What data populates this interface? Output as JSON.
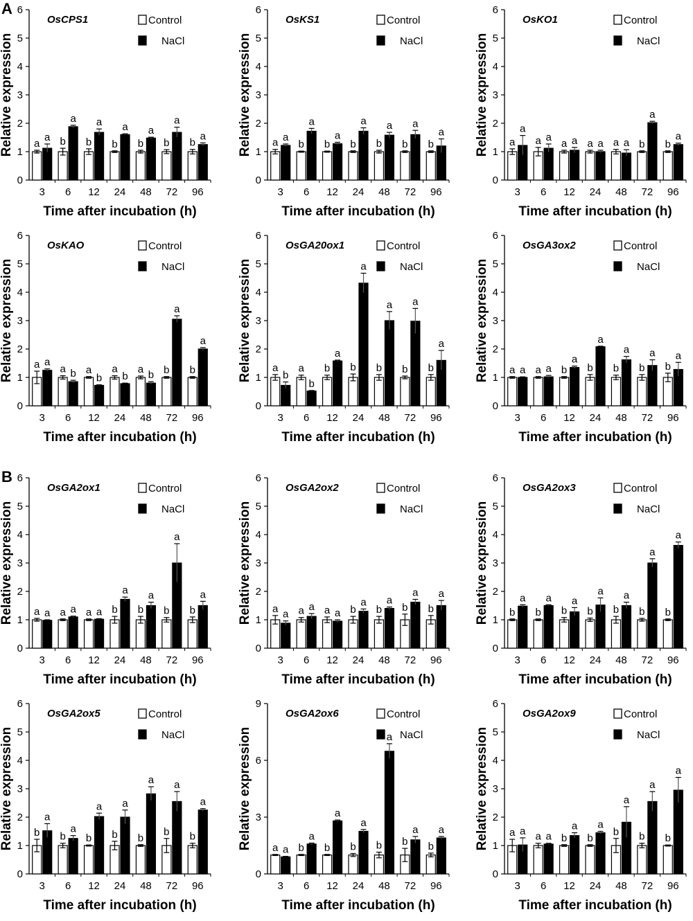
{
  "figure": {
    "panel_labels": [
      "A",
      "B"
    ],
    "xlabel": "Time after incubation (h)",
    "ylabel": "Relative expression",
    "legend": {
      "control": "Control",
      "nacl": "NaCl"
    },
    "colors": {
      "control": "#ffffff",
      "nacl": "#000000",
      "edge": "#000000"
    }
  },
  "chart_data": [
    {
      "type": "bar",
      "title": "OsCPS1",
      "categories": [
        "3",
        "6",
        "12",
        "24",
        "48",
        "72",
        "96"
      ],
      "xlabel": "Time after incubation (h)",
      "ylabel": "Relative expression",
      "ylim": [
        0,
        6
      ],
      "yticks": [
        "0",
        "1",
        "2",
        "3",
        "4",
        "5",
        "6"
      ],
      "series": [
        {
          "name": "Control",
          "values": [
            1,
            1,
            1,
            1,
            1,
            1,
            1
          ],
          "errors": [
            0.05,
            0.12,
            0.1,
            0.03,
            0.05,
            0.07,
            0.08
          ],
          "letters": [
            "a",
            "b",
            "b",
            "b",
            "b",
            "b",
            "b"
          ]
        },
        {
          "name": "NaCl",
          "values": [
            1.12,
            1.88,
            1.68,
            1.6,
            1.48,
            1.68,
            1.25
          ],
          "errors": [
            0.15,
            0.05,
            0.12,
            0.03,
            0.03,
            0.18,
            0.06
          ],
          "letters": [
            "a",
            "a",
            "a",
            "a",
            "a",
            "a",
            "a"
          ]
        }
      ]
    },
    {
      "type": "bar",
      "title": "OsKS1",
      "categories": [
        "3",
        "6",
        "12",
        "24",
        "48",
        "72",
        "96"
      ],
      "xlabel": "Time after incubation (h)",
      "ylabel": "Relative expression",
      "ylim": [
        0,
        6
      ],
      "yticks": [
        "0",
        "1",
        "2",
        "3",
        "4",
        "5",
        "6"
      ],
      "series": [
        {
          "name": "Control",
          "values": [
            1,
            1,
            1,
            1,
            1,
            1,
            1
          ],
          "errors": [
            0.08,
            0.02,
            0.02,
            0.03,
            0.05,
            0.03,
            0.03
          ],
          "letters": [
            "a",
            "b",
            "b",
            "b",
            "b",
            "b",
            "b"
          ]
        },
        {
          "name": "NaCl",
          "values": [
            1.22,
            1.72,
            1.28,
            1.72,
            1.58,
            1.6,
            1.2
          ],
          "errors": [
            0.05,
            0.1,
            0.05,
            0.12,
            0.1,
            0.15,
            0.25
          ],
          "letters": [
            "a",
            "a",
            "a",
            "a",
            "a",
            "a",
            "a"
          ]
        }
      ]
    },
    {
      "type": "bar",
      "title": "OsKO1",
      "categories": [
        "3",
        "6",
        "12",
        "24",
        "48",
        "72",
        "96"
      ],
      "xlabel": "Time after incubation (h)",
      "ylabel": "Relative expression",
      "ylim": [
        0,
        6
      ],
      "yticks": [
        "0",
        "1",
        "2",
        "3",
        "4",
        "5",
        "6"
      ],
      "series": [
        {
          "name": "Control",
          "values": [
            1,
            1,
            1,
            1,
            1,
            1,
            1
          ],
          "errors": [
            0.1,
            0.15,
            0.05,
            0.05,
            0.08,
            0.03,
            0.03
          ],
          "letters": [
            "a",
            "a",
            "a",
            "a",
            "a",
            "b",
            "b"
          ]
        },
        {
          "name": "NaCl",
          "values": [
            1.22,
            1.12,
            1.05,
            1,
            0.95,
            2.02,
            1.25
          ],
          "errors": [
            0.35,
            0.15,
            0.1,
            0.05,
            0.12,
            0.05,
            0.05
          ],
          "letters": [
            "a",
            "a",
            "a",
            "a",
            "a",
            "a",
            "a"
          ]
        }
      ]
    },
    {
      "type": "bar",
      "title": "OsKAO",
      "categories": [
        "3",
        "6",
        "12",
        "24",
        "48",
        "72",
        "96"
      ],
      "xlabel": "Time after incubation (h)",
      "ylabel": "Relative expression",
      "ylim": [
        0,
        6
      ],
      "yticks": [
        "0",
        "1",
        "2",
        "3",
        "4",
        "5",
        "6"
      ],
      "series": [
        {
          "name": "Control",
          "values": [
            1,
            1,
            1,
            1,
            1,
            1,
            1
          ],
          "errors": [
            0.22,
            0.06,
            0.03,
            0.06,
            0.05,
            0.03,
            0.03
          ],
          "letters": [
            "a",
            "a",
            "a",
            "a",
            "a",
            "b",
            "b"
          ]
        },
        {
          "name": "NaCl",
          "values": [
            1.25,
            0.85,
            0.72,
            0.78,
            0.8,
            3.05,
            2.0
          ],
          "errors": [
            0.05,
            0.05,
            0.02,
            0.02,
            0.05,
            0.12,
            0.05
          ],
          "letters": [
            "a",
            "b",
            "b",
            "b",
            "b",
            "a",
            "a"
          ]
        }
      ]
    },
    {
      "type": "bar",
      "title": "OsGA20ox1",
      "categories": [
        "3",
        "6",
        "12",
        "24",
        "48",
        "72",
        "96"
      ],
      "xlabel": "Time after incubation (h)",
      "ylabel": "Relative expression",
      "ylim": [
        0,
        6
      ],
      "yticks": [
        "0",
        "1",
        "2",
        "3",
        "4",
        "5",
        "6"
      ],
      "series": [
        {
          "name": "Control",
          "values": [
            1,
            1,
            1,
            1,
            1,
            1,
            1
          ],
          "errors": [
            0.1,
            0.08,
            0.08,
            0.12,
            0.1,
            0.05,
            0.1
          ],
          "letters": [
            "a",
            "a",
            "b",
            "b",
            "b",
            "b",
            "b"
          ]
        },
        {
          "name": "NaCl",
          "values": [
            0.72,
            0.52,
            1.58,
            4.32,
            3.0,
            2.98,
            1.6
          ],
          "errors": [
            0.12,
            0.02,
            0.03,
            0.35,
            0.32,
            0.45,
            0.35
          ],
          "letters": [
            "b",
            "b",
            "a",
            "a",
            "a",
            "a",
            "a"
          ]
        }
      ]
    },
    {
      "type": "bar",
      "title": "OsGA3ox2",
      "categories": [
        "3",
        "6",
        "12",
        "24",
        "48",
        "72",
        "96"
      ],
      "xlabel": "Time after incubation (h)",
      "ylabel": "Relative expression",
      "ylim": [
        0,
        6
      ],
      "yticks": [
        "0",
        "1",
        "2",
        "3",
        "4",
        "5",
        "6"
      ],
      "series": [
        {
          "name": "Control",
          "values": [
            1,
            1,
            1,
            1,
            1,
            1,
            1
          ],
          "errors": [
            0.03,
            0.03,
            0.03,
            0.1,
            0.08,
            0.1,
            0.15
          ],
          "letters": [
            "a",
            "a",
            "b",
            "b",
            "b",
            "b",
            "b"
          ]
        },
        {
          "name": "NaCl",
          "values": [
            1.0,
            1.02,
            1.35,
            2.08,
            1.62,
            1.42,
            1.28
          ],
          "errors": [
            0.02,
            0.05,
            0.05,
            0.02,
            0.12,
            0.2,
            0.25
          ],
          "letters": [
            "a",
            "a",
            "a",
            "a",
            "a",
            "a",
            "a"
          ]
        }
      ]
    },
    {
      "type": "bar",
      "title": "OsGA2ox1",
      "categories": [
        "3",
        "6",
        "12",
        "24",
        "48",
        "72",
        "96"
      ],
      "xlabel": "Time after incubation (h)",
      "ylabel": "Relative expression",
      "ylim": [
        0,
        6
      ],
      "yticks": [
        "0",
        "1",
        "2",
        "3",
        "4",
        "5",
        "6"
      ],
      "series": [
        {
          "name": "Control",
          "values": [
            1,
            1,
            1,
            1,
            1,
            1,
            1
          ],
          "errors": [
            0.05,
            0.03,
            0.03,
            0.12,
            0.12,
            0.08,
            0.1
          ],
          "letters": [
            "a",
            "a",
            "a",
            "b",
            "b",
            "b",
            "b"
          ]
        },
        {
          "name": "NaCl",
          "values": [
            0.98,
            1.1,
            1.02,
            1.72,
            1.5,
            3.0,
            1.5
          ],
          "errors": [
            0.02,
            0.03,
            0.02,
            0.08,
            0.12,
            0.68,
            0.15
          ],
          "letters": [
            "a",
            "a",
            "a",
            "a",
            "a",
            "a",
            "a"
          ]
        }
      ]
    },
    {
      "type": "bar",
      "title": "OsGA2ox2",
      "categories": [
        "3",
        "6",
        "12",
        "24",
        "48",
        "72",
        "96"
      ],
      "xlabel": "Time after incubation (h)",
      "ylabel": "Relative expression",
      "ylim": [
        0,
        6
      ],
      "yticks": [
        "0",
        "1",
        "2",
        "3",
        "4",
        "5",
        "6"
      ],
      "series": [
        {
          "name": "Control",
          "values": [
            1,
            1,
            1,
            1,
            1,
            1,
            1
          ],
          "errors": [
            0.15,
            0.08,
            0.1,
            0.12,
            0.12,
            0.2,
            0.15
          ],
          "letters": [
            "a",
            "a",
            "a",
            "b",
            "b",
            "b",
            "b"
          ]
        },
        {
          "name": "NaCl",
          "values": [
            0.88,
            1.12,
            0.95,
            1.3,
            1.4,
            1.62,
            1.5
          ],
          "errors": [
            0.08,
            0.1,
            0.05,
            0.08,
            0.05,
            0.1,
            0.18
          ],
          "letters": [
            "a",
            "a",
            "a",
            "a",
            "a",
            "a",
            "a"
          ]
        }
      ]
    },
    {
      "type": "bar",
      "title": "OsGA2ox3",
      "categories": [
        "3",
        "6",
        "12",
        "24",
        "48",
        "72",
        "96"
      ],
      "xlabel": "Time after incubation (h)",
      "ylabel": "Relative expression",
      "ylim": [
        0,
        6
      ],
      "yticks": [
        "0",
        "1",
        "2",
        "3",
        "4",
        "5",
        "6"
      ],
      "series": [
        {
          "name": "Control",
          "values": [
            1,
            1,
            1,
            1,
            1,
            1,
            1
          ],
          "errors": [
            0.03,
            0.03,
            0.08,
            0.06,
            0.12,
            0.05,
            0.03
          ],
          "letters": [
            "b",
            "b",
            "b",
            "b",
            "b",
            "b",
            "b"
          ]
        },
        {
          "name": "NaCl",
          "values": [
            1.48,
            1.5,
            1.28,
            1.52,
            1.5,
            3.0,
            3.62
          ],
          "errors": [
            0.05,
            0.03,
            0.15,
            0.25,
            0.12,
            0.15,
            0.12
          ],
          "letters": [
            "a",
            "a",
            "a",
            "a",
            "a",
            "a",
            "a"
          ]
        }
      ]
    },
    {
      "type": "bar",
      "title": "OsGA2ox5",
      "categories": [
        "3",
        "6",
        "12",
        "24",
        "48",
        "72",
        "96"
      ],
      "xlabel": "Time after incubation (h)",
      "ylabel": "Relative expression",
      "ylim": [
        0,
        6
      ],
      "yticks": [
        "0",
        "1",
        "2",
        "3",
        "4",
        "5",
        "6"
      ],
      "series": [
        {
          "name": "Control",
          "values": [
            1,
            1,
            1,
            1,
            1,
            1,
            1
          ],
          "errors": [
            0.22,
            0.08,
            0.02,
            0.15,
            0.03,
            0.25,
            0.08
          ],
          "letters": [
            "b",
            "b",
            "b",
            "b",
            "b",
            "b",
            "b"
          ]
        },
        {
          "name": "NaCl",
          "values": [
            1.52,
            1.25,
            2.02,
            2.0,
            2.82,
            2.55,
            2.25
          ],
          "errors": [
            0.25,
            0.1,
            0.12,
            0.25,
            0.25,
            0.35,
            0.05
          ],
          "letters": [
            "a",
            "a",
            "a",
            "a",
            "a",
            "a",
            "a"
          ]
        }
      ]
    },
    {
      "type": "bar",
      "title": "OsGA2ox6",
      "categories": [
        "3",
        "6",
        "12",
        "24",
        "48",
        "72",
        "96"
      ],
      "xlabel": "Time after incubation (h)",
      "ylabel": "Relative expression",
      "ylim": [
        0,
        9
      ],
      "yticks": [
        "0",
        "3",
        "6",
        "9"
      ],
      "series": [
        {
          "name": "Control",
          "values": [
            1,
            1,
            1,
            1,
            1,
            1,
            1
          ],
          "errors": [
            0.03,
            0.03,
            0.03,
            0.08,
            0.15,
            0.35,
            0.1
          ],
          "letters": [
            "a",
            "b",
            "b",
            "b",
            "b",
            "b",
            "b"
          ]
        },
        {
          "name": "NaCl",
          "values": [
            0.9,
            1.58,
            2.8,
            2.25,
            6.48,
            1.8,
            1.9
          ],
          "errors": [
            0.03,
            0.05,
            0.05,
            0.1,
            0.4,
            0.18,
            0.08
          ],
          "letters": [
            "a",
            "a",
            "a",
            "a",
            "a",
            "a",
            "a"
          ]
        }
      ]
    },
    {
      "type": "bar",
      "title": "OsGA2ox9",
      "categories": [
        "3",
        "6",
        "12",
        "24",
        "48",
        "72",
        "96"
      ],
      "xlabel": "Time after incubation (h)",
      "ylabel": "Relative expression",
      "ylim": [
        0,
        6
      ],
      "yticks": [
        "0",
        "1",
        "2",
        "3",
        "4",
        "5",
        "6"
      ],
      "series": [
        {
          "name": "Control",
          "values": [
            1,
            1,
            1,
            1,
            1,
            1,
            1
          ],
          "errors": [
            0.22,
            0.08,
            0.03,
            0.03,
            0.25,
            0.08,
            0.02
          ],
          "letters": [
            "a",
            "a",
            "b",
            "b",
            "b",
            "b",
            "b"
          ]
        },
        {
          "name": "NaCl",
          "values": [
            1.02,
            1.05,
            1.35,
            1.45,
            1.82,
            2.55,
            2.95
          ],
          "errors": [
            0.25,
            0.03,
            0.1,
            0.05,
            0.55,
            0.35,
            0.45
          ],
          "letters": [
            "a",
            "a",
            "a",
            "a",
            "a",
            "a",
            "a"
          ]
        }
      ]
    }
  ]
}
